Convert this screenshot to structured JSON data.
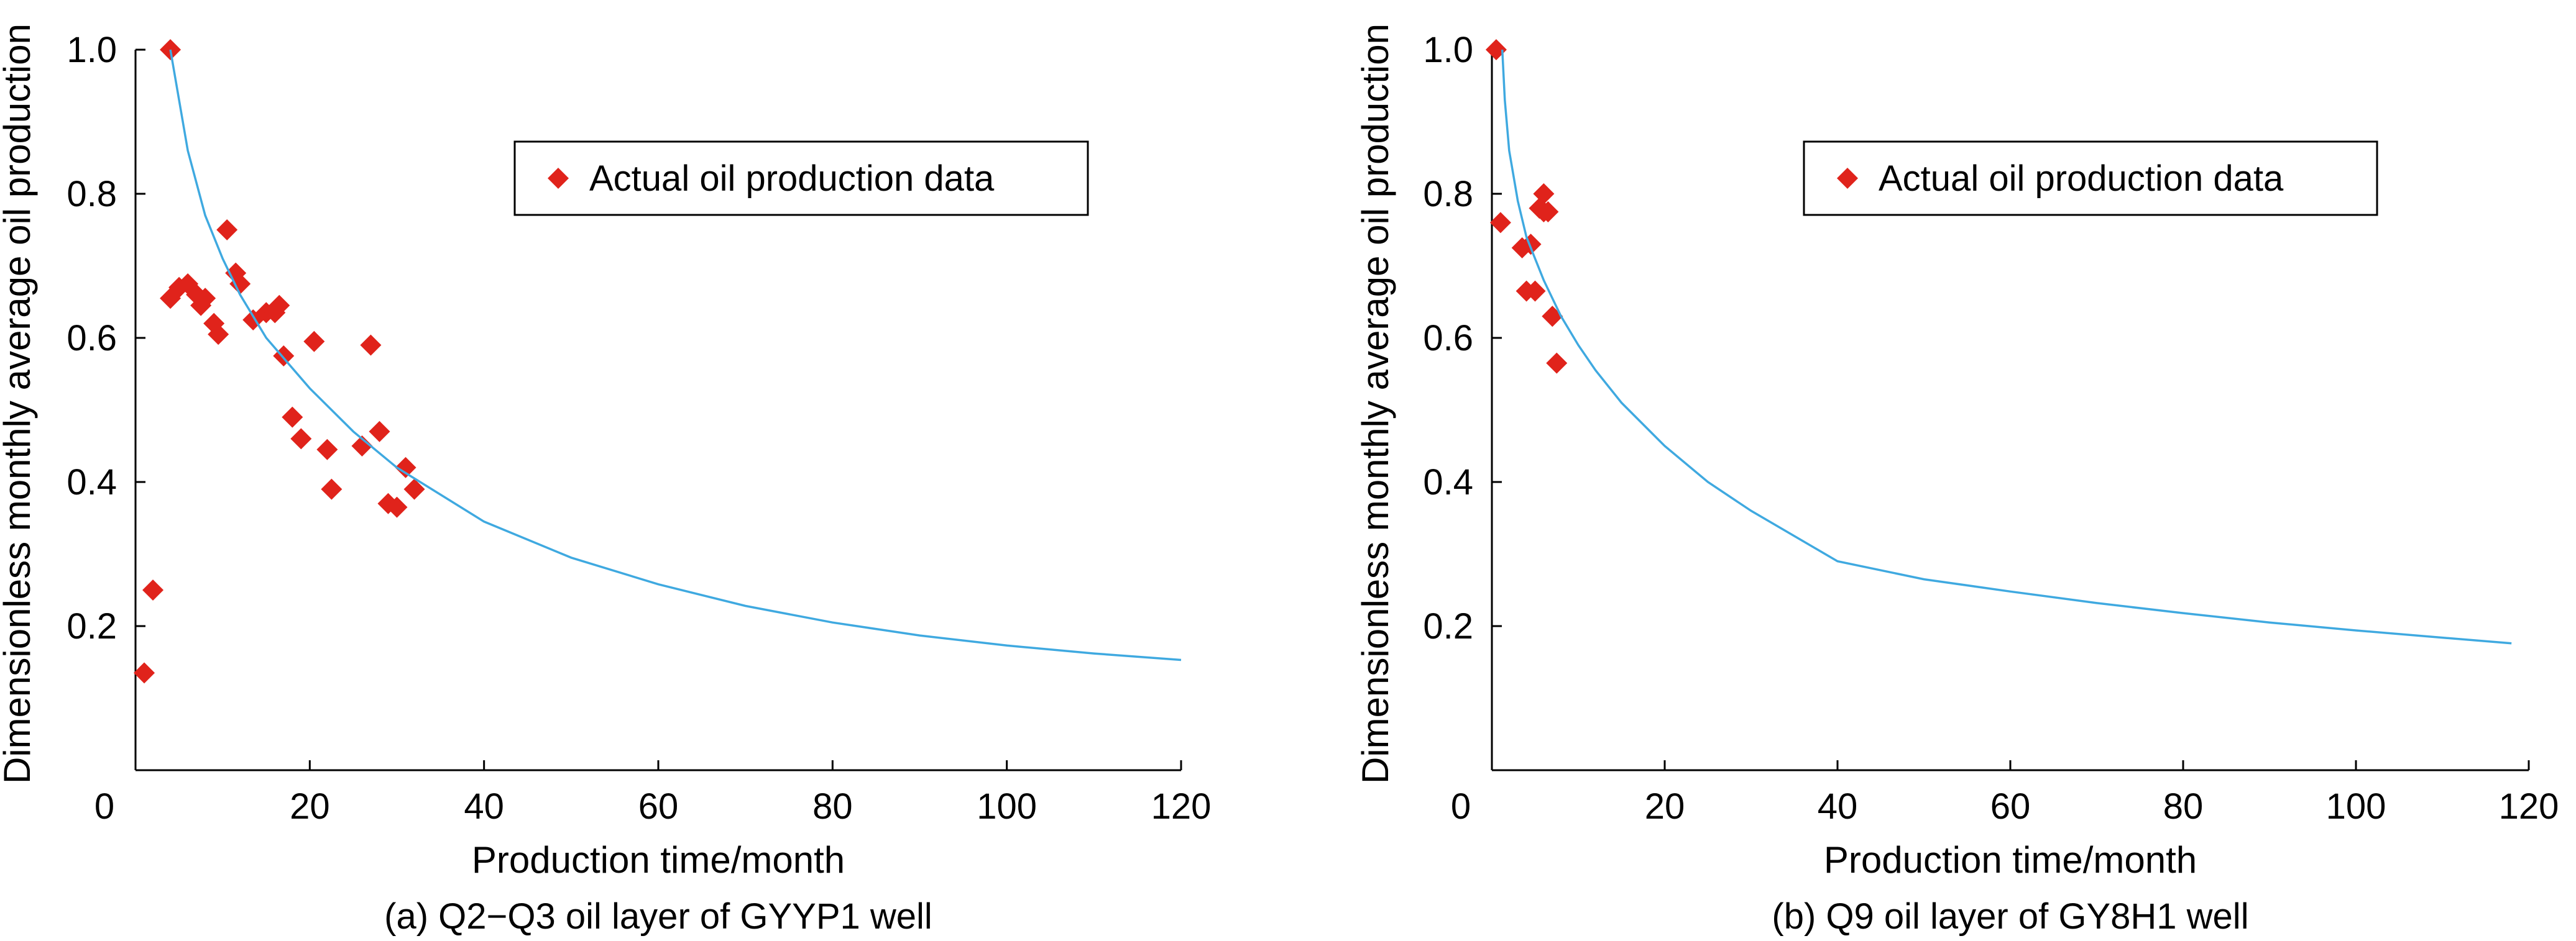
{
  "chart_data": [
    {
      "type": "scatter",
      "caption": "(a) Q2−Q3 oil layer of GYYP1 well",
      "xlabel": "Production time/month",
      "ylabel": "Dimensionless monthly average oil production",
      "xlim": [
        0,
        120
      ],
      "ylim": [
        0,
        1.0
      ],
      "xticks": [
        "0",
        "20",
        "40",
        "60",
        "80",
        "100",
        "120"
      ],
      "yticks": [
        "0.2",
        "0.4",
        "0.6",
        "0.8",
        "1.0"
      ],
      "legend_position": "top-right",
      "series": [
        {
          "name": "Actual oil production data",
          "kind": "scatter",
          "marker": "diamond",
          "color": "#e0231b",
          "x": [
            1,
            2,
            4,
            4,
            5,
            6,
            7,
            7.5,
            8,
            9,
            9.5,
            10.5,
            11.5,
            12,
            13.5,
            15,
            16,
            16.5,
            17,
            18,
            19,
            20.5,
            22,
            22.5,
            26,
            27,
            28,
            29,
            30,
            31,
            32
          ],
          "y": [
            0.135,
            0.25,
            0.655,
            1.0,
            0.67,
            0.675,
            0.66,
            0.645,
            0.655,
            0.62,
            0.605,
            0.75,
            0.69,
            0.675,
            0.625,
            0.635,
            0.635,
            0.645,
            0.575,
            0.49,
            0.46,
            0.595,
            0.445,
            0.39,
            0.45,
            0.59,
            0.47,
            0.37,
            0.365,
            0.42,
            0.39
          ]
        },
        {
          "kind": "line",
          "color": "#3fa9e0",
          "x": [
            4,
            6,
            8,
            10,
            12,
            15,
            20,
            25,
            30,
            40,
            50,
            60,
            70,
            80,
            90,
            100,
            110,
            120
          ],
          "y": [
            1.0,
            0.86,
            0.77,
            0.71,
            0.66,
            0.6,
            0.53,
            0.47,
            0.42,
            0.345,
            0.295,
            0.258,
            0.228,
            0.205,
            0.187,
            0.173,
            0.162,
            0.153
          ]
        }
      ]
    },
    {
      "type": "scatter",
      "caption": "(b) Q9 oil layer of GY8H1 well",
      "xlabel": "Production time/month",
      "ylabel": "Dimensionless monthly average oil production",
      "xlim": [
        0,
        120
      ],
      "ylim": [
        0,
        1.0
      ],
      "xticks": [
        "0",
        "20",
        "40",
        "60",
        "80",
        "100",
        "120"
      ],
      "yticks": [
        "0.2",
        "0.4",
        "0.6",
        "0.8",
        "1.0"
      ],
      "legend_position": "top-right",
      "series": [
        {
          "name": "Actual oil production data",
          "kind": "scatter",
          "marker": "diamond",
          "color": "#e0231b",
          "x": [
            0.5,
            1,
            3.5,
            4,
            4.5,
            5,
            5.5,
            6,
            6,
            6.5,
            7,
            7.5
          ],
          "y": [
            1.0,
            0.76,
            0.725,
            0.665,
            0.73,
            0.665,
            0.78,
            0.8,
            0.775,
            0.775,
            0.63,
            0.565
          ]
        },
        {
          "kind": "line",
          "color": "#3fa9e0",
          "x": [
            1.2,
            1.5,
            2,
            3,
            4,
            5,
            6,
            8,
            10,
            12,
            15,
            20,
            25,
            30,
            40,
            50,
            60,
            70,
            80,
            90,
            100,
            110,
            118
          ],
          "y": [
            1.0,
            0.93,
            0.86,
            0.79,
            0.74,
            0.71,
            0.68,
            0.63,
            0.59,
            0.555,
            0.51,
            0.45,
            0.4,
            0.36,
            0.29,
            0.265,
            0.248,
            0.232,
            0.218,
            0.205,
            0.194,
            0.184,
            0.176
          ]
        }
      ]
    }
  ]
}
